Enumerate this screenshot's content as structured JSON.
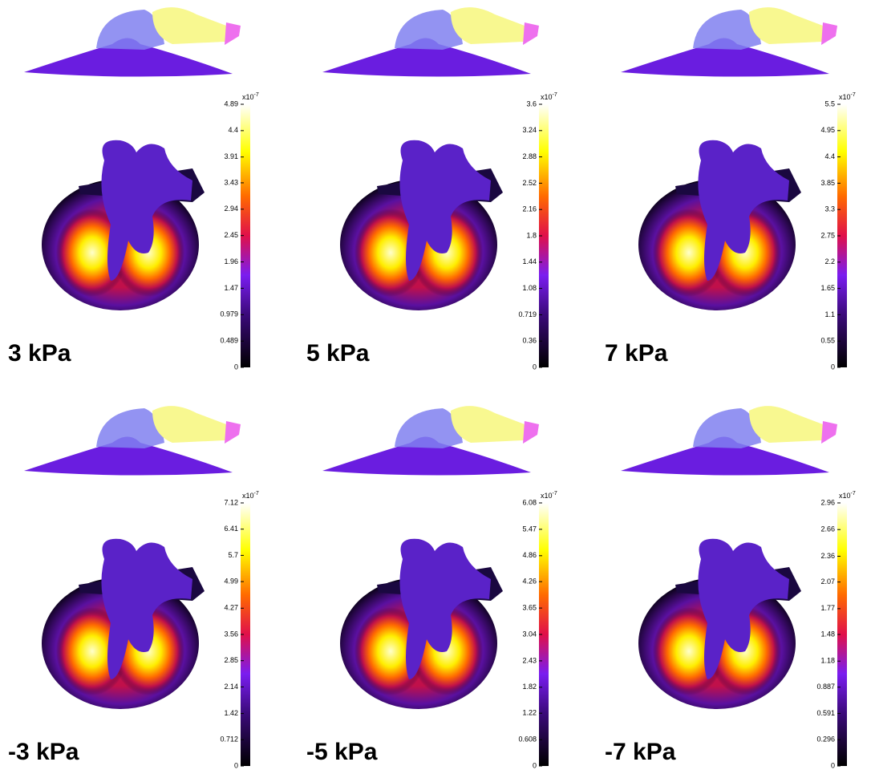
{
  "panels": [
    {
      "label": "3 kPa",
      "colorbar": {
        "lim": [
          0,
          4.89
        ],
        "ticks": [
          0,
          0.489,
          0.979,
          1.47,
          1.96,
          2.45,
          2.94,
          3.43,
          3.91,
          4.4,
          4.89
        ],
        "base": "x10",
        "power": "-7"
      }
    },
    {
      "label": "5 kPa",
      "colorbar": {
        "lim": [
          0,
          3.6
        ],
        "ticks": [
          0,
          0.36,
          0.719,
          1.08,
          1.44,
          1.8,
          2.16,
          2.52,
          2.88,
          3.24,
          3.6
        ],
        "base": "x10",
        "power": "-7"
      }
    },
    {
      "label": "7 kPa",
      "colorbar": {
        "lim": [
          0,
          5.5
        ],
        "ticks": [
          0,
          0.55,
          1.1,
          1.65,
          2.2,
          2.75,
          3.3,
          3.85,
          4.4,
          4.95,
          5.5
        ],
        "base": "x10",
        "power": "-7"
      }
    },
    {
      "label": "-3 kPa",
      "colorbar": {
        "lim": [
          0,
          7.12
        ],
        "ticks": [
          0,
          0.712,
          1.42,
          2.14,
          2.85,
          3.56,
          4.27,
          4.99,
          5.7,
          6.41,
          7.12
        ],
        "base": "x10",
        "power": "-7"
      }
    },
    {
      "label": "-5 kPa",
      "colorbar": {
        "lim": [
          0,
          6.08
        ],
        "ticks": [
          0,
          0.608,
          1.22,
          1.82,
          2.43,
          3.04,
          3.65,
          4.26,
          4.86,
          5.47,
          6.08
        ],
        "base": "x10",
        "power": "-7"
      }
    },
    {
      "label": "-7 kPa",
      "colorbar": {
        "lim": [
          0,
          2.96
        ],
        "ticks": [
          0,
          0.296,
          0.591,
          0.887,
          1.18,
          1.48,
          1.77,
          2.07,
          2.36,
          2.66,
          2.96
        ],
        "base": "x10",
        "power": "-7"
      }
    }
  ]
}
